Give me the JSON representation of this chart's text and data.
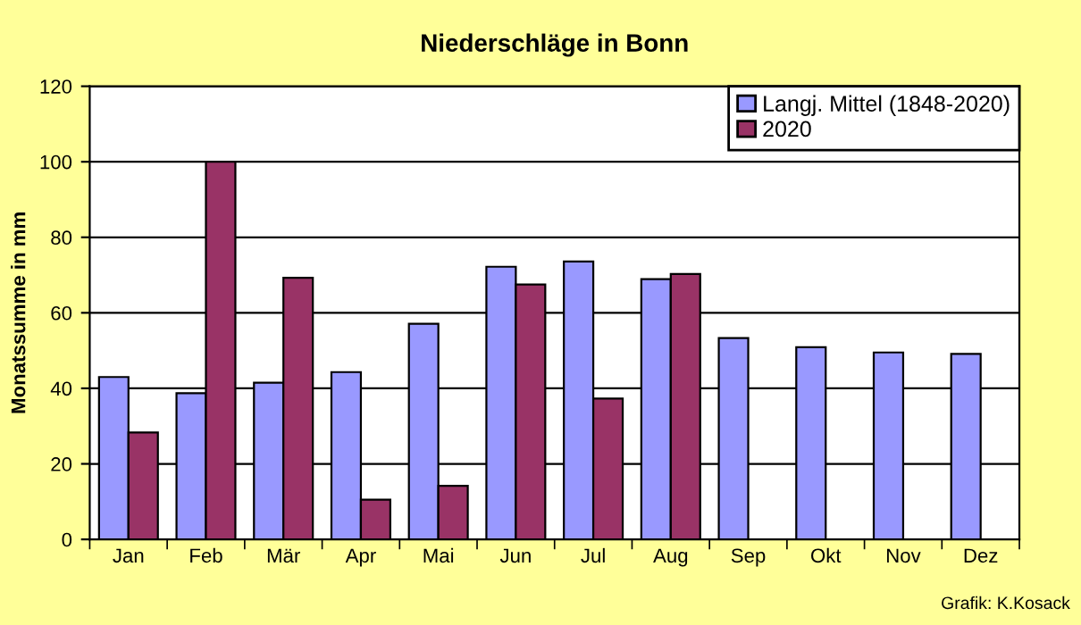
{
  "chart_data": {
    "type": "bar",
    "title": "Niederschläge in Bonn",
    "ylabel": "Monatssumme in mm",
    "categories": [
      "Jan",
      "Feb",
      "Mär",
      "Apr",
      "Mai",
      "Jun",
      "Jul",
      "Aug",
      "Sep",
      "Okt",
      "Nov",
      "Dez"
    ],
    "series": [
      {
        "name": "Langj. Mittel (1848-2020)",
        "color": "#9999ff",
        "values": [
          43,
          38.7,
          41.5,
          44.3,
          57.1,
          72.2,
          73.6,
          68.9,
          53.3,
          50.9,
          49.5,
          49.1
        ]
      },
      {
        "name": "2020",
        "color": "#993366",
        "values": [
          28.3,
          100,
          69.3,
          10.5,
          14.2,
          67.5,
          37.3,
          70.3,
          null,
          null,
          null,
          null
        ]
      }
    ],
    "ylim": [
      0,
      120
    ],
    "yticks": [
      0,
      20,
      40,
      60,
      80,
      100,
      120
    ],
    "grid": "y",
    "legend": "top right",
    "annotations": [
      "Grafik: K.Kosack"
    ]
  }
}
